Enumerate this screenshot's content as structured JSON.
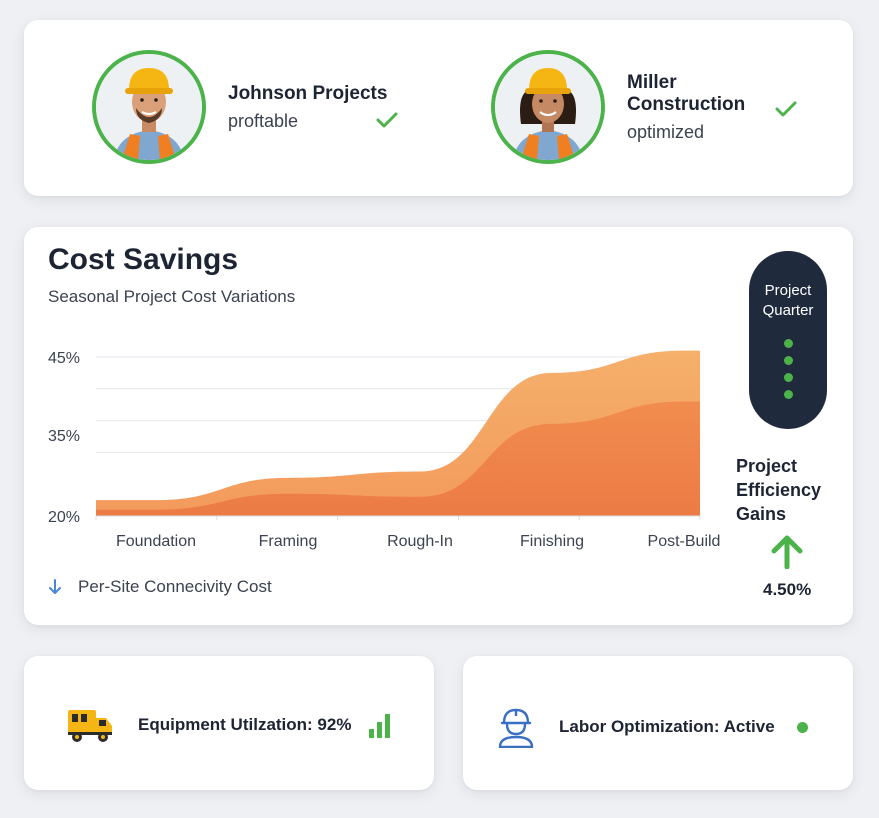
{
  "profiles": [
    {
      "name": "Johnson Projects",
      "status": "proftable",
      "icon": "check-icon"
    },
    {
      "name": "Miller Construction",
      "status": "optimized",
      "icon": "check-icon"
    }
  ],
  "main": {
    "title": "Cost Savings",
    "subtitle": "Seasonal Project Cost Variations",
    "legend_label": "Per-Site Connecivity Cost",
    "legend_icon": "arrow-down-icon"
  },
  "side_panel": {
    "pill_line1": "Project",
    "pill_line2": "Quarter",
    "dot_count": 4,
    "gains_line1": "Project",
    "gains_line2": "Efficiency",
    "gains_line3": "Gains",
    "gains_icon": "arrow-up-icon",
    "gains_value": "4.50%"
  },
  "chart_data": {
    "type": "area",
    "categories": [
      "Foundation",
      "Framing",
      "Rough-In",
      "Finishing",
      "Post-Build"
    ],
    "y_ticks": [
      "45%",
      "35%",
      "20%"
    ],
    "ylim": [
      20,
      45
    ],
    "series": [
      {
        "values": [
          22.5,
          26,
          27,
          42.5,
          46
        ]
      },
      {
        "values": [
          21,
          23.5,
          23,
          34.5,
          38
        ]
      }
    ],
    "grid": true
  },
  "bottom": {
    "equipment_label": "Equipment Utilzation: 92%",
    "equipment_icon": "truck-icon",
    "equipment_status_icon": "bar-chart-icon",
    "labor_label": "Labor Optimization: Active",
    "labor_icon": "worker-icon",
    "labor_status_icon": "status-dot-icon"
  },
  "colors": {
    "accent_green": "#4cb34a",
    "orange_light": "#f4a966",
    "orange_dark": "#ed8048",
    "navy": "#1f2a3c",
    "arrow_blue": "#4a86d8"
  }
}
